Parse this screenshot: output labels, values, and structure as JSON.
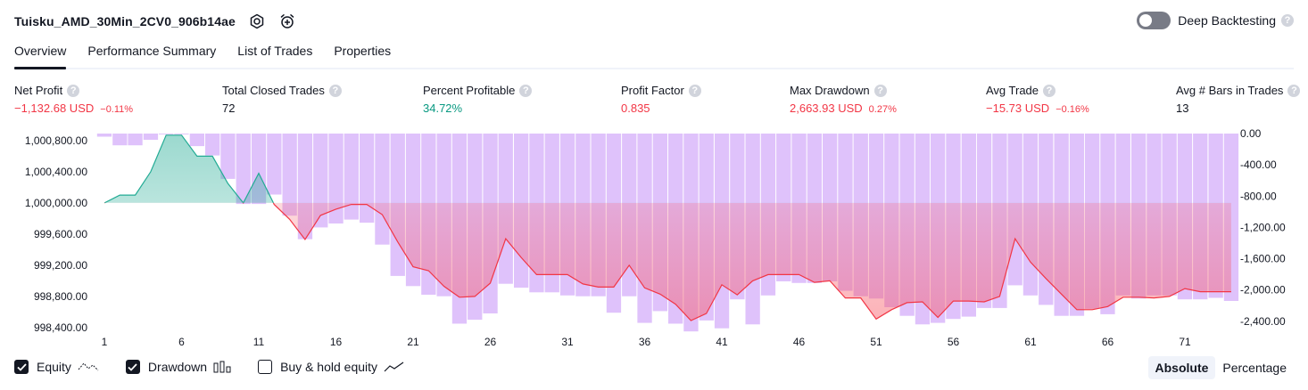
{
  "header": {
    "title": "Tuisku_AMD_30Min_2CV0_906b14ae",
    "deep_backtesting_label": "Deep Backtesting",
    "help_glyph": "?"
  },
  "tabs": [
    {
      "label": "Overview",
      "active": true
    },
    {
      "label": "Performance Summary",
      "active": false
    },
    {
      "label": "List of Trades",
      "active": false
    },
    {
      "label": "Properties",
      "active": false
    }
  ],
  "metrics": {
    "net_profit": {
      "label": "Net Profit",
      "value": "−1,132.68 USD",
      "pct": "−0.11%"
    },
    "total_closed_trades": {
      "label": "Total Closed Trades",
      "value": "72"
    },
    "percent_profitable": {
      "label": "Percent Profitable",
      "value": "34.72%"
    },
    "profit_factor": {
      "label": "Profit Factor",
      "value": "0.835"
    },
    "max_drawdown": {
      "label": "Max Drawdown",
      "value": "2,663.93 USD",
      "pct": "0.27%"
    },
    "avg_trade": {
      "label": "Avg Trade",
      "value": "−15.73 USD",
      "pct": "−0.16%"
    },
    "avg_bars": {
      "label": "Avg # Bars in Trades",
      "value": "13"
    }
  },
  "legend": {
    "equity": {
      "label": "Equity",
      "checked": true
    },
    "drawdown": {
      "label": "Drawdown",
      "checked": true
    },
    "buy_hold": {
      "label": "Buy & hold equity",
      "checked": false
    }
  },
  "mode": {
    "absolute": "Absolute",
    "percentage": "Percentage",
    "selected": "Absolute"
  },
  "colors": {
    "red": "#f23645",
    "green": "#089981",
    "equity_up_line": "#22ab94",
    "equity_down_line": "#f23645",
    "drawdown_bar": "#dfc2fb",
    "text": "#131722"
  },
  "chart_data": {
    "type": "line+bar",
    "x_ticks": [
      1,
      6,
      11,
      16,
      21,
      26,
      31,
      36,
      41,
      46,
      51,
      56,
      61,
      66,
      71
    ],
    "left_axis": {
      "ticks": [
        "1,000,800.00",
        "1,000,400.00",
        "1,000,000.00",
        "999,600.00",
        "999,200.00",
        "998,800.00",
        "998,400.00"
      ],
      "values": [
        1000800,
        1000400,
        1000000,
        999600,
        999200,
        998800,
        998400
      ],
      "baseline": 1000000,
      "ylim": [
        998330,
        1000890
      ]
    },
    "right_axis": {
      "ticks": [
        "0.00",
        "-400.00",
        "-800.00",
        "-1,200.00",
        "-1,600.00",
        "-2,000.00",
        "-2,400.00"
      ],
      "values": [
        0,
        -400,
        -800,
        -1200,
        -1600,
        -2000,
        -2400
      ],
      "ylim": [
        -2550,
        0
      ]
    },
    "equity": {
      "x": [
        1,
        2,
        3,
        4,
        5,
        6,
        7,
        8,
        9,
        10,
        11,
        12,
        13,
        14,
        15,
        16,
        17,
        18,
        19,
        20,
        21,
        22,
        23,
        24,
        25,
        26,
        27,
        28,
        29,
        30,
        31,
        32,
        33,
        34,
        35,
        36,
        37,
        38,
        39,
        40,
        41,
        42,
        43,
        44,
        45,
        46,
        47,
        48,
        49,
        50,
        51,
        52,
        53,
        54,
        55,
        56,
        57,
        58,
        59,
        60,
        61,
        62,
        63,
        64,
        65,
        66,
        67,
        68,
        69,
        70,
        71,
        72,
        73,
        74
      ],
      "values": [
        1000000,
        1000100,
        1000100,
        1000400,
        1000870,
        1000870,
        1000600,
        1000600,
        1000250,
        1000000,
        1000380,
        999980,
        999790,
        999530,
        999840,
        999920,
        999980,
        999980,
        999850,
        999500,
        999180,
        999130,
        998930,
        998790,
        998800,
        998970,
        999540,
        999300,
        999080,
        999080,
        999080,
        998960,
        998920,
        998920,
        999200,
        998910,
        998830,
        998700,
        998490,
        998580,
        998950,
        998820,
        999000,
        999080,
        999080,
        999080,
        998980,
        999000,
        998780,
        998780,
        998510,
        998630,
        998720,
        998730,
        998530,
        998740,
        998740,
        998730,
        998800,
        999540,
        999240,
        999030,
        998830,
        998630,
        998630,
        998670,
        998790,
        998790,
        998780,
        998800,
        998900,
        998860,
        998860,
        998860
      ]
    },
    "drawdown": {
      "x": [
        1,
        2,
        3,
        4,
        5,
        6,
        7,
        8,
        9,
        10,
        11,
        12,
        13,
        14,
        15,
        16,
        17,
        18,
        19,
        20,
        21,
        22,
        23,
        24,
        25,
        26,
        27,
        28,
        29,
        30,
        31,
        32,
        33,
        34,
        35,
        36,
        37,
        38,
        39,
        40,
        41,
        42,
        43,
        44,
        45,
        46,
        47,
        48,
        49,
        50,
        51,
        52,
        53,
        54,
        55,
        56,
        57,
        58,
        59,
        60,
        61,
        62,
        63,
        64,
        65,
        66,
        67,
        68,
        69,
        70,
        71,
        72,
        73,
        74
      ],
      "values": [
        -40,
        -150,
        -150,
        -80,
        -10,
        -10,
        -160,
        -280,
        -580,
        -900,
        -900,
        -780,
        -1050,
        -1350,
        -1200,
        -1150,
        -1100,
        -1140,
        -1420,
        -1820,
        -1950,
        -2060,
        -2080,
        -2430,
        -2380,
        -2300,
        -1920,
        -1970,
        -2030,
        -2030,
        -2070,
        -2080,
        -2080,
        -2290,
        -2080,
        -2420,
        -2270,
        -2430,
        -2530,
        -2390,
        -2490,
        -2120,
        -2440,
        -2070,
        -1890,
        -1910,
        -1910,
        -1890,
        -2010,
        -2080,
        -2110,
        -2220,
        -2330,
        -2440,
        -2420,
        -2370,
        -2340,
        -2230,
        -2230,
        -1940,
        -2070,
        -2190,
        -2330,
        -2330,
        -2240,
        -2310,
        -2070,
        -2110,
        -2070,
        -2070,
        -2120,
        -2120,
        -2100,
        -2140
      ]
    }
  }
}
